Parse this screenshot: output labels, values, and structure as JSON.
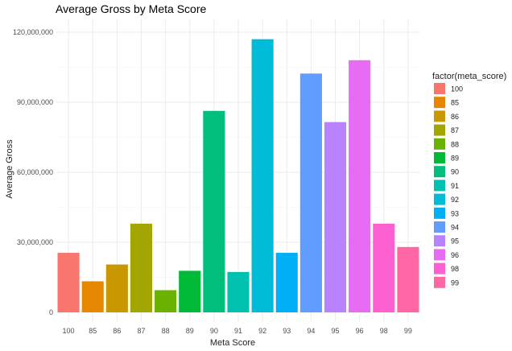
{
  "chart_data": {
    "type": "bar",
    "title": "Average Gross by Meta Score",
    "xlabel": "Meta Score",
    "ylabel": "Average Gross",
    "categories": [
      "100",
      "85",
      "86",
      "87",
      "88",
      "89",
      "90",
      "91",
      "92",
      "93",
      "94",
      "95",
      "96",
      "98",
      "99"
    ],
    "values": [
      25500000,
      13300000,
      20500000,
      38000000,
      9500000,
      17800000,
      86300000,
      17300000,
      117000000,
      25500000,
      102300000,
      81500000,
      108000000,
      38000000,
      28000000
    ],
    "colors": [
      "#F8766D",
      "#E58700",
      "#C99800",
      "#A3A500",
      "#6BB100",
      "#00BA38",
      "#00BF7D",
      "#00C0AF",
      "#00BCD8",
      "#00B0F6",
      "#619CFF",
      "#B983FF",
      "#E76BF3",
      "#FD61D1",
      "#FF67A4"
    ],
    "ylim": [
      0,
      120000000
    ],
    "yticks": [
      0,
      30000000,
      60000000,
      90000000,
      120000000
    ],
    "ytick_labels": [
      "0",
      "30,000,000",
      "60,000,000",
      "90,000,000",
      "120,000,000"
    ],
    "grid": true,
    "legend": {
      "title": "factor(meta_score)",
      "position": "right",
      "entries": [
        "100",
        "85",
        "86",
        "87",
        "88",
        "89",
        "90",
        "91",
        "92",
        "93",
        "94",
        "95",
        "96",
        "98",
        "99"
      ]
    }
  }
}
